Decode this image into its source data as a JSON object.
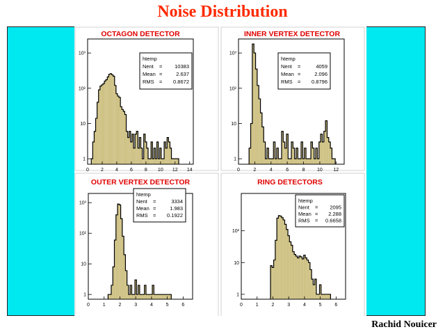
{
  "title": "Noise Distribution",
  "author": "Rachid Nouicer",
  "colors": {
    "title": "#ff2a00",
    "background": "#00e8f0",
    "fill": "#cfc285",
    "panel_title": "#e00000"
  },
  "chart_data": [
    {
      "type": "area",
      "title": "OCTAGON DETECTOR",
      "log_y": true,
      "xlim": [
        0,
        14.5
      ],
      "ylim": [
        0.7,
        2500
      ],
      "x_ticks": [
        "0",
        "2",
        "4",
        "6",
        "8",
        "10",
        "12",
        "14"
      ],
      "y_ticks": [
        "1",
        "10",
        "10²",
        "10³"
      ],
      "stats": {
        "name": "htemp",
        "entries_label": "Nent",
        "entries": "10383",
        "mean_label": "Mean",
        "mean": "2.637",
        "rms_label": "RMS",
        "rms": "0.8672"
      },
      "x": [
        0.6,
        0.8,
        1.0,
        1.2,
        1.4,
        1.6,
        1.8,
        2.0,
        2.2,
        2.4,
        2.6,
        2.8,
        3.0,
        3.2,
        3.4,
        3.6,
        3.8,
        4.0,
        4.2,
        4.4,
        4.6,
        4.8,
        5.0,
        5.2,
        5.4,
        5.6,
        5.8,
        6.0,
        6.2,
        6.4,
        6.6,
        6.8,
        7.0,
        7.2,
        7.4,
        7.6,
        7.8,
        8.0,
        8.2,
        8.4,
        8.6,
        8.8,
        9.0,
        9.2,
        9.4,
        9.6,
        9.8,
        10.0,
        10.2,
        10.4,
        10.6,
        10.8,
        11.0,
        11.2,
        11.4,
        11.6,
        11.8,
        12.0,
        12.2,
        12.4
      ],
      "y": [
        1,
        3,
        6,
        14,
        40,
        90,
        115,
        125,
        135,
        160,
        175,
        210,
        250,
        260,
        240,
        220,
        120,
        70,
        60,
        55,
        30,
        25,
        22,
        18,
        6,
        4,
        6,
        3,
        5,
        2,
        5,
        6,
        2,
        4,
        2,
        1,
        5,
        3,
        2,
        1,
        1,
        3,
        1,
        2,
        1,
        3,
        1,
        2,
        1,
        1,
        3,
        2,
        4,
        3,
        2,
        1,
        1,
        1,
        1,
        1
      ]
    },
    {
      "type": "area",
      "title": "INNER VERTEX DETECTOR",
      "log_y": true,
      "xlim": [
        0,
        13
      ],
      "ylim": [
        0.7,
        2500
      ],
      "x_ticks": [
        "0",
        "2",
        "4",
        "6",
        "8",
        "10",
        "12"
      ],
      "y_ticks": [
        "1",
        "10",
        "10²",
        "10³"
      ],
      "stats": {
        "name": "htemp",
        "entries_label": "Nent",
        "entries": "4059",
        "mean_label": "Mean",
        "mean": "2.096",
        "rms_label": "RMS",
        "rms": "0.8796"
      },
      "x": [
        1.4,
        1.6,
        1.8,
        2.0,
        2.2,
        2.4,
        2.6,
        2.8,
        3.0,
        3.2,
        3.4,
        3.6,
        3.8,
        4.0,
        4.2,
        4.4,
        4.6,
        4.8,
        5.0,
        5.2,
        5.4,
        5.6,
        5.8,
        6.0,
        6.2,
        6.4,
        6.6,
        6.8,
        7.0,
        7.2,
        7.4,
        7.6,
        7.8,
        8.0,
        8.2,
        8.4,
        8.6,
        8.8,
        9.0,
        9.2,
        9.4,
        9.6,
        9.8,
        10.0,
        10.2,
        10.4,
        10.6,
        10.8,
        11.0,
        11.2,
        11.4,
        11.6,
        11.8
      ],
      "y": [
        2,
        10,
        1800,
        1000,
        350,
        120,
        50,
        20,
        8,
        3,
        1,
        2,
        1,
        1,
        1,
        3,
        1,
        2,
        1,
        1,
        6,
        3,
        2,
        5,
        1,
        1,
        3,
        2,
        1,
        2,
        1,
        1,
        3,
        1,
        2,
        1,
        1,
        1,
        3,
        2,
        1,
        2,
        1,
        3,
        5,
        3,
        6,
        12,
        4,
        3,
        2,
        1,
        1
      ]
    },
    {
      "type": "area",
      "title": "OUTER VERTEX DETECTOR",
      "log_y": true,
      "xlim": [
        0,
        6.6
      ],
      "ylim": [
        0.7,
        2000
      ],
      "x_ticks": [
        "0",
        "1",
        "2",
        "3",
        "4",
        "5",
        "6"
      ],
      "y_ticks": [
        "1",
        "10",
        "10²",
        "10³"
      ],
      "stats": {
        "name": "htemp",
        "entries_label": "Nent",
        "entries": "3334",
        "mean_label": "Mean",
        "mean": "1.983",
        "rms_label": "RMS",
        "rms": "0.1922"
      },
      "x": [
        1.3,
        1.4,
        1.5,
        1.6,
        1.7,
        1.8,
        1.9,
        2.0,
        2.1,
        2.2,
        2.3,
        2.4,
        2.5,
        2.6,
        2.7,
        2.8,
        2.9,
        3.0,
        3.1,
        3.2,
        3.3,
        3.4,
        3.5,
        3.6,
        3.7,
        3.8,
        3.9,
        4.0,
        4.1,
        4.2,
        4.3,
        4.4,
        4.5,
        4.6,
        4.7,
        4.8,
        4.9,
        5.0,
        5.1,
        5.2
      ],
      "y": [
        1,
        1,
        2,
        8,
        60,
        400,
        900,
        850,
        300,
        80,
        20,
        6,
        2,
        1,
        2,
        1,
        1,
        3,
        1,
        2,
        1,
        1,
        1,
        2,
        1,
        1,
        1,
        1,
        2,
        1,
        1,
        1,
        1,
        1,
        1,
        1,
        1,
        1,
        1,
        1
      ]
    },
    {
      "type": "area",
      "title": "RING DETECTORS",
      "log_y": true,
      "xlim": [
        0,
        6.6
      ],
      "ylim": [
        0.7,
        1500
      ],
      "x_ticks": [
        "0",
        "1",
        "2",
        "3",
        "4",
        "5",
        "6"
      ],
      "y_ticks": [
        "1",
        "10",
        "10²"
      ],
      "stats": {
        "name": "htemp",
        "entries_label": "Nent",
        "entries": "2095",
        "mean_label": "Mean",
        "mean": "2.288",
        "rms_label": "RMS",
        "rms": "0.6658"
      },
      "x": [
        1.9,
        2.0,
        2.1,
        2.2,
        2.3,
        2.4,
        2.5,
        2.6,
        2.7,
        2.8,
        2.9,
        3.0,
        3.1,
        3.2,
        3.3,
        3.4,
        3.5,
        3.6,
        3.7,
        3.8,
        3.9,
        4.0,
        4.1,
        4.2,
        4.3,
        4.4,
        4.5,
        4.6,
        4.7,
        4.8,
        4.9,
        5.0,
        5.1,
        5.2,
        5.3,
        5.4,
        5.5,
        5.6
      ],
      "y": [
        8,
        7,
        12,
        50,
        250,
        300,
        290,
        260,
        220,
        160,
        110,
        70,
        45,
        35,
        22,
        18,
        16,
        14,
        16,
        15,
        13,
        17,
        14,
        12,
        10,
        6,
        3,
        2,
        3,
        1,
        1,
        2,
        1,
        1,
        1,
        1,
        1,
        1
      ]
    }
  ]
}
